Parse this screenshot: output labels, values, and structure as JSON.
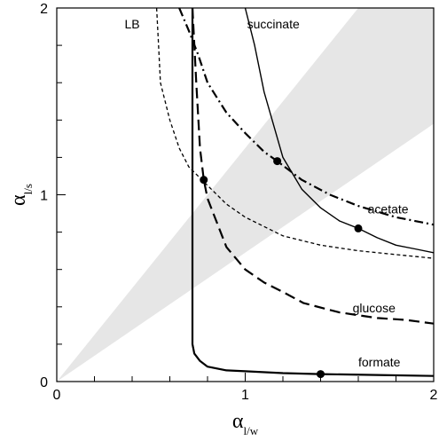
{
  "chart_data": {
    "type": "line",
    "xlabel": {
      "main": "α",
      "sub": "l/w"
    },
    "ylabel": {
      "main": "α",
      "sub": "l/s"
    },
    "xlim": [
      0,
      2
    ],
    "ylim": [
      0,
      2
    ],
    "xticks": [
      {
        "value": 0,
        "label": "0"
      },
      {
        "value": 1,
        "label": "1"
      },
      {
        "value": 2,
        "label": "2"
      }
    ],
    "yticks": [
      {
        "value": 0,
        "label": "0"
      },
      {
        "value": 1,
        "label": "1"
      },
      {
        "value": 2,
        "label": "2"
      }
    ],
    "minor_tick_step": 0.2,
    "grid": false,
    "shaded_region": {
      "color": "#e6e6e6",
      "vertices": [
        [
          0,
          0
        ],
        [
          2,
          1.38
        ],
        [
          2,
          2
        ],
        [
          1.6,
          2
        ]
      ]
    },
    "series": [
      {
        "name": "succinate",
        "style": "solid",
        "label_at": [
          1.01,
          1.89
        ],
        "marker": [
          1.6,
          0.82
        ],
        "points": [
          [
            1.0,
            2.0
          ],
          [
            1.05,
            1.8
          ],
          [
            1.1,
            1.55
          ],
          [
            1.2,
            1.2
          ],
          [
            1.3,
            1.03
          ],
          [
            1.4,
            0.93
          ],
          [
            1.5,
            0.86
          ],
          [
            1.6,
            0.82
          ],
          [
            1.7,
            0.77
          ],
          [
            1.8,
            0.73
          ],
          [
            1.9,
            0.71
          ],
          [
            2.0,
            0.69
          ]
        ]
      },
      {
        "name": "acetate",
        "style": "dashdot",
        "label_at": [
          1.65,
          0.9
        ],
        "marker": [
          1.17,
          1.18
        ],
        "points": [
          [
            0.65,
            2.0
          ],
          [
            0.7,
            1.88
          ],
          [
            0.75,
            1.75
          ],
          [
            0.8,
            1.6
          ],
          [
            0.9,
            1.44
          ],
          [
            1.0,
            1.33
          ],
          [
            1.1,
            1.23
          ],
          [
            1.17,
            1.18
          ],
          [
            1.3,
            1.08
          ],
          [
            1.45,
            1.0
          ],
          [
            1.6,
            0.94
          ],
          [
            1.8,
            0.88
          ],
          [
            2.0,
            0.84
          ]
        ]
      },
      {
        "name": "LB",
        "style": "shortdash",
        "label_at": [
          0.36,
          1.89
        ],
        "points": [
          [
            0.53,
            2.0
          ],
          [
            0.54,
            1.8
          ],
          [
            0.55,
            1.6
          ],
          [
            0.6,
            1.4
          ],
          [
            0.65,
            1.25
          ],
          [
            0.7,
            1.15
          ],
          [
            0.8,
            1.05
          ],
          [
            0.9,
            0.95
          ],
          [
            1.0,
            0.88
          ],
          [
            1.2,
            0.78
          ],
          [
            1.4,
            0.73
          ],
          [
            1.6,
            0.7
          ],
          [
            1.8,
            0.68
          ],
          [
            2.0,
            0.66
          ]
        ]
      },
      {
        "name": "glucose",
        "style": "longdash",
        "label_at": [
          1.57,
          0.37
        ],
        "marker": [
          0.78,
          1.08
        ],
        "points": [
          [
            0.72,
            2.0
          ],
          [
            0.74,
            1.6
          ],
          [
            0.76,
            1.25
          ],
          [
            0.78,
            1.08
          ],
          [
            0.8,
            0.98
          ],
          [
            0.9,
            0.72
          ],
          [
            1.0,
            0.6
          ],
          [
            1.1,
            0.53
          ],
          [
            1.2,
            0.48
          ],
          [
            1.31,
            0.42
          ],
          [
            1.5,
            0.37
          ],
          [
            1.7,
            0.34
          ],
          [
            1.85,
            0.33
          ],
          [
            2.0,
            0.31
          ]
        ]
      },
      {
        "name": "formate",
        "style": "solid-thick",
        "label_at": [
          1.6,
          0.08
        ],
        "marker": [
          1.4,
          0.04
        ],
        "points": [
          [
            0.72,
            2.0
          ],
          [
            0.72,
            1.6
          ],
          [
            0.72,
            1.2
          ],
          [
            0.72,
            0.8
          ],
          [
            0.72,
            0.4
          ],
          [
            0.72,
            0.2
          ],
          [
            0.73,
            0.15
          ],
          [
            0.76,
            0.11
          ],
          [
            0.8,
            0.08
          ],
          [
            0.9,
            0.06
          ],
          [
            1.0,
            0.055
          ],
          [
            1.2,
            0.045
          ],
          [
            1.4,
            0.04
          ],
          [
            1.7,
            0.035
          ],
          [
            2.0,
            0.03
          ]
        ]
      }
    ]
  }
}
